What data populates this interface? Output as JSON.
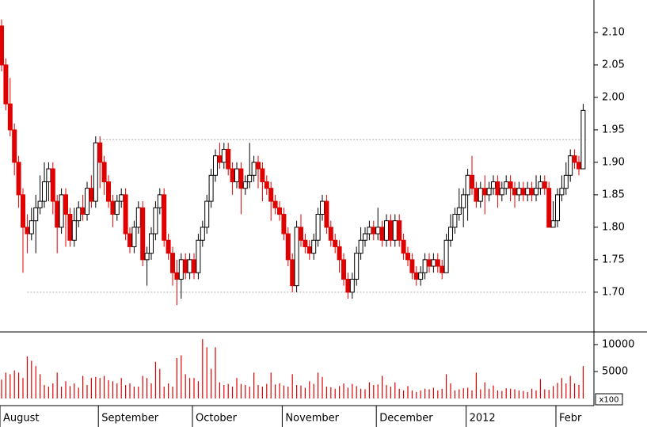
{
  "chart_data": {
    "type": "candlestick",
    "open": [
      2.11,
      2.05,
      1.99,
      1.95,
      1.9,
      1.85,
      1.8,
      1.79,
      1.81,
      1.83,
      1.84,
      1.87,
      1.89,
      1.84,
      1.8,
      1.85,
      1.82,
      1.78,
      1.81,
      1.83,
      1.82,
      1.86,
      1.84,
      1.93,
      1.9,
      1.87,
      1.84,
      1.82,
      1.84,
      1.85,
      1.79,
      1.77,
      1.8,
      1.83,
      1.75,
      1.76,
      1.79,
      1.83,
      1.85,
      1.78,
      1.76,
      1.73,
      1.72,
      1.75,
      1.73,
      1.75,
      1.73,
      1.78,
      1.8,
      1.84,
      1.88,
      1.91,
      1.9,
      1.92,
      1.89,
      1.87,
      1.89,
      1.86,
      1.87,
      1.88,
      1.9,
      1.89,
      1.87,
      1.86,
      1.84,
      1.83,
      1.82,
      1.79,
      1.75,
      1.71,
      1.8,
      1.78,
      1.77,
      1.76,
      1.78,
      1.82,
      1.84,
      1.8,
      1.78,
      1.77,
      1.75,
      1.72,
      1.7,
      1.72,
      1.76,
      1.78,
      1.79,
      1.8,
      1.79,
      1.8,
      1.78,
      1.81,
      1.78,
      1.81,
      1.78,
      1.76,
      1.75,
      1.73,
      1.72,
      1.73,
      1.75,
      1.74,
      1.75,
      1.74,
      1.73,
      1.78,
      1.8,
      1.82,
      1.83,
      1.85,
      1.88,
      1.86,
      1.84,
      1.86,
      1.85,
      1.86,
      1.87,
      1.85,
      1.86,
      1.87,
      1.86,
      1.85,
      1.86,
      1.85,
      1.86,
      1.85,
      1.86,
      1.87,
      1.86,
      1.8,
      1.81,
      1.85,
      1.86,
      1.88,
      1.91,
      1.9,
      1.89
    ],
    "high": [
      2.12,
      2.06,
      2.03,
      1.96,
      1.91,
      1.86,
      1.82,
      1.83,
      1.85,
      1.88,
      1.9,
      1.9,
      1.9,
      1.85,
      1.86,
      1.86,
      1.83,
      1.83,
      1.84,
      1.85,
      1.87,
      1.88,
      1.94,
      1.94,
      1.91,
      1.88,
      1.85,
      1.85,
      1.86,
      1.86,
      1.8,
      1.81,
      1.84,
      1.84,
      1.77,
      1.8,
      1.84,
      1.86,
      1.86,
      1.79,
      1.77,
      1.75,
      1.76,
      1.76,
      1.76,
      1.76,
      1.79,
      1.81,
      1.85,
      1.89,
      1.92,
      1.93,
      1.93,
      1.93,
      1.9,
      1.9,
      1.9,
      1.88,
      1.93,
      1.91,
      1.91,
      1.9,
      1.88,
      1.87,
      1.85,
      1.84,
      1.83,
      1.8,
      1.76,
      1.81,
      1.82,
      1.79,
      1.78,
      1.79,
      1.83,
      1.85,
      1.85,
      1.81,
      1.79,
      1.78,
      1.76,
      1.73,
      1.73,
      1.77,
      1.8,
      1.8,
      1.81,
      1.81,
      1.83,
      1.81,
      1.82,
      1.82,
      1.82,
      1.82,
      1.79,
      1.77,
      1.76,
      1.74,
      1.74,
      1.76,
      1.76,
      1.76,
      1.76,
      1.75,
      1.79,
      1.82,
      1.83,
      1.86,
      1.86,
      1.89,
      1.91,
      1.87,
      1.87,
      1.88,
      1.87,
      1.88,
      1.88,
      1.87,
      1.88,
      1.88,
      1.87,
      1.87,
      1.87,
      1.87,
      1.87,
      1.88,
      1.88,
      1.88,
      1.87,
      1.84,
      1.86,
      1.88,
      1.9,
      1.92,
      1.92,
      1.91,
      1.99
    ],
    "low": [
      2.04,
      1.98,
      1.94,
      1.88,
      1.83,
      1.73,
      1.76,
      1.78,
      1.76,
      1.82,
      1.83,
      1.84,
      1.82,
      1.76,
      1.79,
      1.77,
      1.77,
      1.77,
      1.8,
      1.81,
      1.81,
      1.83,
      1.83,
      1.86,
      1.85,
      1.83,
      1.8,
      1.81,
      1.83,
      1.78,
      1.76,
      1.76,
      1.79,
      1.74,
      1.71,
      1.75,
      1.78,
      1.82,
      1.77,
      1.75,
      1.71,
      1.68,
      1.69,
      1.72,
      1.72,
      1.72,
      1.72,
      1.77,
      1.79,
      1.83,
      1.87,
      1.89,
      1.89,
      1.88,
      1.85,
      1.86,
      1.82,
      1.85,
      1.86,
      1.87,
      1.86,
      1.84,
      1.85,
      1.81,
      1.82,
      1.81,
      1.78,
      1.74,
      1.7,
      1.7,
      1.77,
      1.76,
      1.75,
      1.75,
      1.77,
      1.81,
      1.79,
      1.77,
      1.76,
      1.73,
      1.71,
      1.69,
      1.69,
      1.71,
      1.75,
      1.77,
      1.78,
      1.78,
      1.78,
      1.77,
      1.77,
      1.77,
      1.77,
      1.77,
      1.75,
      1.74,
      1.72,
      1.71,
      1.71,
      1.72,
      1.73,
      1.73,
      1.73,
      1.72,
      1.73,
      1.77,
      1.79,
      1.81,
      1.8,
      1.81,
      1.85,
      1.83,
      1.83,
      1.82,
      1.84,
      1.85,
      1.83,
      1.84,
      1.85,
      1.84,
      1.83,
      1.84,
      1.84,
      1.84,
      1.84,
      1.84,
      1.85,
      1.85,
      1.8,
      1.8,
      1.8,
      1.84,
      1.85,
      1.87,
      1.89,
      1.88,
      1.89
    ],
    "close": [
      2.05,
      1.99,
      1.95,
      1.9,
      1.85,
      1.8,
      1.79,
      1.81,
      1.83,
      1.84,
      1.87,
      1.89,
      1.84,
      1.8,
      1.85,
      1.82,
      1.78,
      1.81,
      1.83,
      1.82,
      1.86,
      1.84,
      1.93,
      1.9,
      1.87,
      1.84,
      1.82,
      1.84,
      1.85,
      1.79,
      1.77,
      1.8,
      1.83,
      1.75,
      1.76,
      1.79,
      1.83,
      1.85,
      1.78,
      1.76,
      1.73,
      1.72,
      1.75,
      1.73,
      1.75,
      1.73,
      1.78,
      1.8,
      1.84,
      1.88,
      1.91,
      1.9,
      1.92,
      1.89,
      1.87,
      1.89,
      1.86,
      1.87,
      1.88,
      1.9,
      1.89,
      1.87,
      1.86,
      1.84,
      1.83,
      1.82,
      1.79,
      1.75,
      1.71,
      1.8,
      1.78,
      1.77,
      1.76,
      1.78,
      1.82,
      1.84,
      1.8,
      1.78,
      1.77,
      1.75,
      1.72,
      1.7,
      1.72,
      1.76,
      1.78,
      1.79,
      1.8,
      1.79,
      1.8,
      1.78,
      1.81,
      1.78,
      1.81,
      1.78,
      1.76,
      1.75,
      1.73,
      1.72,
      1.73,
      1.75,
      1.74,
      1.75,
      1.74,
      1.73,
      1.78,
      1.8,
      1.82,
      1.83,
      1.85,
      1.88,
      1.86,
      1.84,
      1.86,
      1.85,
      1.86,
      1.87,
      1.85,
      1.86,
      1.87,
      1.86,
      1.85,
      1.86,
      1.85,
      1.86,
      1.85,
      1.86,
      1.87,
      1.86,
      1.8,
      1.81,
      1.85,
      1.86,
      1.88,
      1.91,
      1.9,
      1.89,
      1.98
    ],
    "volume": [
      3500,
      4800,
      4500,
      5200,
      4800,
      3800,
      7800,
      7000,
      6000,
      4500,
      2500,
      2200,
      2800,
      4800,
      2200,
      3200,
      2300,
      2800,
      2000,
      4200,
      2500,
      3800,
      4000,
      3800,
      4200,
      3400,
      3200,
      2800,
      3800,
      2500,
      2800,
      2200,
      2200,
      4200,
      3800,
      2800,
      6800,
      5500,
      2200,
      2800,
      2200,
      7500,
      8000,
      4500,
      3800,
      3800,
      3200,
      11000,
      9500,
      5500,
      9500,
      3000,
      2500,
      2700,
      2200,
      3800,
      2700,
      2500,
      2200,
      4800,
      2500,
      2200,
      2700,
      4800,
      2600,
      2800,
      2400,
      2200,
      4500,
      2500,
      2400,
      2000,
      3200,
      2700,
      4800,
      4000,
      2200,
      2100,
      1800,
      2300,
      2800,
      2000,
      2700,
      2300,
      1800,
      1700,
      3000,
      2500,
      2600,
      4200,
      2500,
      2200,
      3000,
      1800,
      1500,
      2300,
      1500,
      1200,
      1500,
      1800,
      1700,
      2000,
      1500,
      1800,
      4500,
      2800,
      1500,
      1700,
      1900,
      2000,
      1500,
      4800,
      1700,
      3000,
      1800,
      2400,
      1500,
      1400,
      1900,
      1800,
      1700,
      1500,
      1400,
      1200,
      1800,
      1500,
      3600,
      1700,
      1600,
      2300,
      2900,
      3800,
      2800,
      4200,
      2800,
      2500,
      6000
    ],
    "up_color": "#ffffff",
    "down_color": "#e00000",
    "volume_color": "#e00000",
    "ylim": [
      1.64,
      2.15
    ],
    "yticks": [
      {
        "value": 1.7,
        "label": "1.70"
      },
      1.75,
      {
        "value": 1.8,
        "label": "1.80"
      },
      1.85,
      {
        "value": 1.9,
        "label": "1.90"
      },
      1.95,
      {
        "value": 2.0,
        "label": "2.00"
      },
      2.05,
      {
        "value": 2.1,
        "label": "2.10"
      }
    ],
    "volume_ylim": [
      0,
      12200
    ],
    "volume_yticks": [
      5000,
      10000
    ],
    "volume_unit": "x100",
    "levels": [
      {
        "value": 1.935,
        "from": 23
      },
      {
        "value": 1.7,
        "from": 6
      }
    ],
    "month_labels": [
      {
        "index": 0,
        "label": "August"
      },
      {
        "index": 23,
        "label": "September"
      },
      {
        "index": 45,
        "label": "October"
      },
      {
        "index": 66,
        "label": "November"
      },
      {
        "index": 88,
        "label": "December"
      },
      {
        "index": 109,
        "label": "2012"
      },
      {
        "index": 130,
        "label": "Febr"
      }
    ]
  }
}
